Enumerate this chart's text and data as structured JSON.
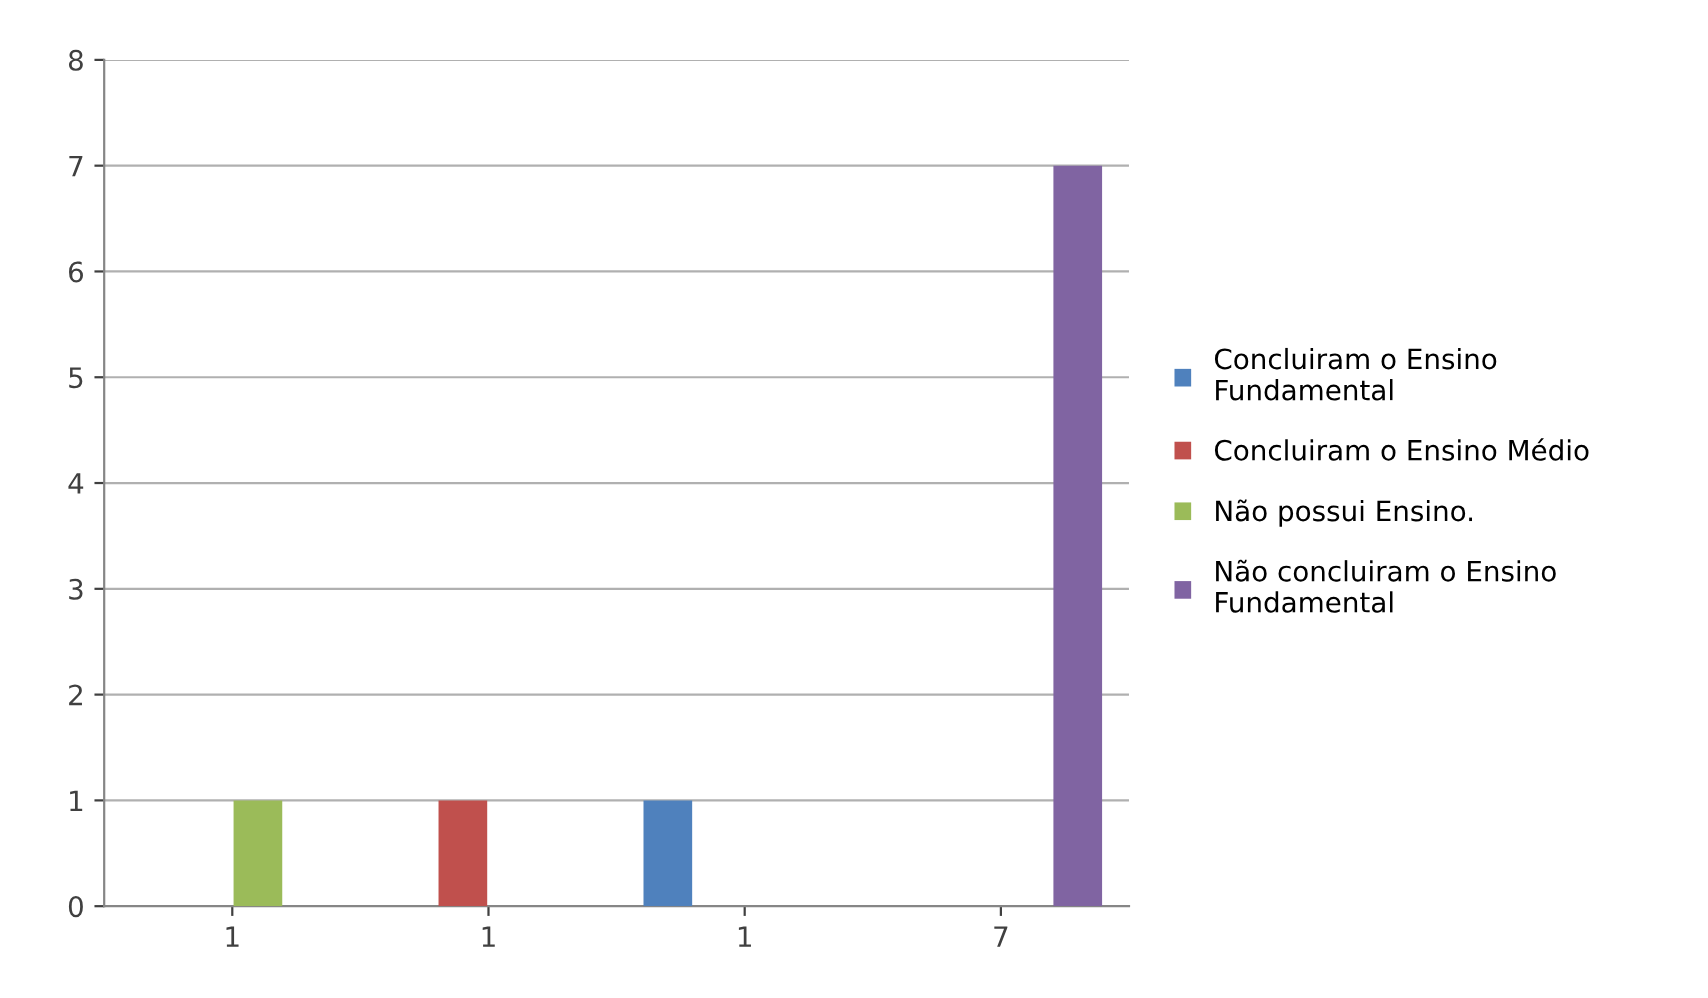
{
  "chart_data": {
    "type": "bar",
    "categories": [
      "1",
      "1",
      "1",
      "7"
    ],
    "series": [
      {
        "name": "Concluiram o Ensino\nFundamental",
        "color": "#4f81bd",
        "values": [
          null,
          null,
          1,
          null
        ]
      },
      {
        "name": "Concluiram o Ensino Médio",
        "color": "#c0504d",
        "values": [
          null,
          1,
          null,
          null
        ]
      },
      {
        "name": "Não possui Ensino.",
        "color": "#9bbb59",
        "values": [
          1,
          null,
          null,
          null
        ]
      },
      {
        "name": "Não concluiram o Ensino\nFundamental",
        "color": "#8064a2",
        "values": [
          null,
          null,
          null,
          7
        ]
      }
    ],
    "ylim": [
      0,
      8
    ],
    "yticks": [
      0,
      1,
      2,
      3,
      4,
      5,
      6,
      7,
      8
    ],
    "grid": "y",
    "legend": "right"
  }
}
